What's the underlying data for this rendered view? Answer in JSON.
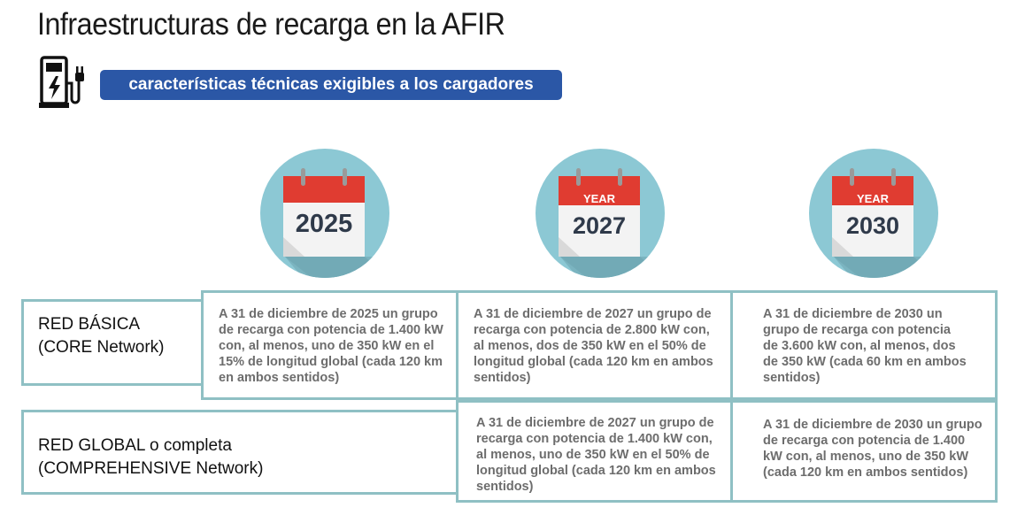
{
  "header": {
    "title": "Infraestructuras de recarga en la AFIR",
    "subtitle": "características técnicas exigibles a los cargadores"
  },
  "icons": {
    "charger": "ev-charger-icon",
    "calendar": "calendar-icon"
  },
  "colors": {
    "accent_blue": "#2b57a6",
    "circle_teal": "#8cc8d4",
    "calendar_red": "#e03c31",
    "table_border": "#8fc0c4",
    "cell_text": "#6d6d6d"
  },
  "years": [
    {
      "year": "2025",
      "tag": ""
    },
    {
      "year": "2027",
      "tag": "YEAR"
    },
    {
      "year": "2030",
      "tag": "YEAR"
    }
  ],
  "rows": [
    {
      "label_line1": "RED BÁSICA",
      "label_line2": "(CORE Network)",
      "cells": [
        "A 31 de diciembre de 2025 un grupo de recarga con potencia de 1.400 kW con, al menos, uno de 350 kW en el 15% de longitud global (cada 120 km en ambos sentidos)",
        "A 31 de diciembre de 2027 un grupo de recarga con potencia de 2.800 kW con, al menos, dos de 350 kW en el 50% de longitud global (cada 120 km en ambos sentidos)",
        "A 31 de diciembre de 2030 un grupo de recarga con potencia de 3.600 kW con, al menos, dos de 350 kW (cada 60 km en ambos sentidos)"
      ]
    },
    {
      "label_line1": "RED GLOBAL o completa",
      "label_line2": "(COMPREHENSIVE Network)",
      "cells": [
        "",
        "A 31 de diciembre de 2027 un grupo de recarga con potencia de 1.400 kW con, al menos, uno de 350 kW en el 50% de longitud global (cada 120 km en ambos sentidos)",
        "A 31 de diciembre de 2030 un grupo de recarga con potencia de 1.400 kW con, al menos, uno de 350 kW (cada 120 km en ambos sentidos)"
      ]
    }
  ]
}
